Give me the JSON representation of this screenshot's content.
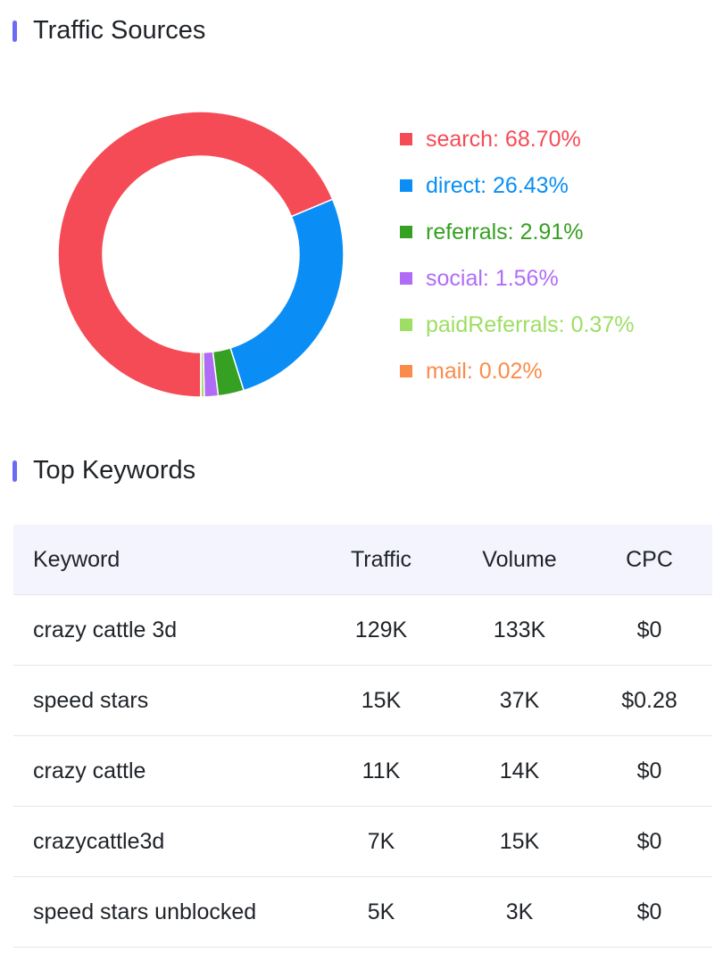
{
  "traffic": {
    "title": "Traffic Sources",
    "sources": [
      {
        "name": "search",
        "percent": 68.7,
        "label": "search: 68.70%",
        "color": "#f54b57"
      },
      {
        "name": "direct",
        "percent": 26.43,
        "label": "direct: 26.43%",
        "color": "#0a8ef5"
      },
      {
        "name": "referrals",
        "percent": 2.91,
        "label": "referrals: 2.91%",
        "color": "#35a021"
      },
      {
        "name": "social",
        "percent": 1.56,
        "label": "social: 1.56%",
        "color": "#b16cf7"
      },
      {
        "name": "paidReferrals",
        "percent": 0.37,
        "label": "paidReferrals: 0.37%",
        "color": "#9ede63"
      },
      {
        "name": "mail",
        "percent": 0.02,
        "label": "mail: 0.02%",
        "color": "#fb8b4b"
      }
    ]
  },
  "keywords": {
    "title": "Top Keywords",
    "columns": [
      "Keyword",
      "Traffic",
      "Volume",
      "CPC"
    ],
    "rows": [
      [
        "crazy cattle 3d",
        "129K",
        "133K",
        "$0"
      ],
      [
        "speed stars",
        "15K",
        "37K",
        "$0.28"
      ],
      [
        "crazy cattle",
        "11K",
        "14K",
        "$0"
      ],
      [
        "crazycattle3d",
        "7K",
        "15K",
        "$0"
      ],
      [
        "speed stars unblocked",
        "5K",
        "3K",
        "$0"
      ]
    ]
  },
  "chart_data": {
    "type": "pie",
    "categories": [
      "search",
      "direct",
      "referrals",
      "social",
      "paidReferrals",
      "mail"
    ],
    "values": [
      68.7,
      26.43,
      2.91,
      1.56,
      0.37,
      0.02
    ],
    "colors": [
      "#f54b57",
      "#0a8ef5",
      "#35a021",
      "#b16cf7",
      "#9ede63",
      "#fb8b4b"
    ],
    "legend": "right"
  }
}
